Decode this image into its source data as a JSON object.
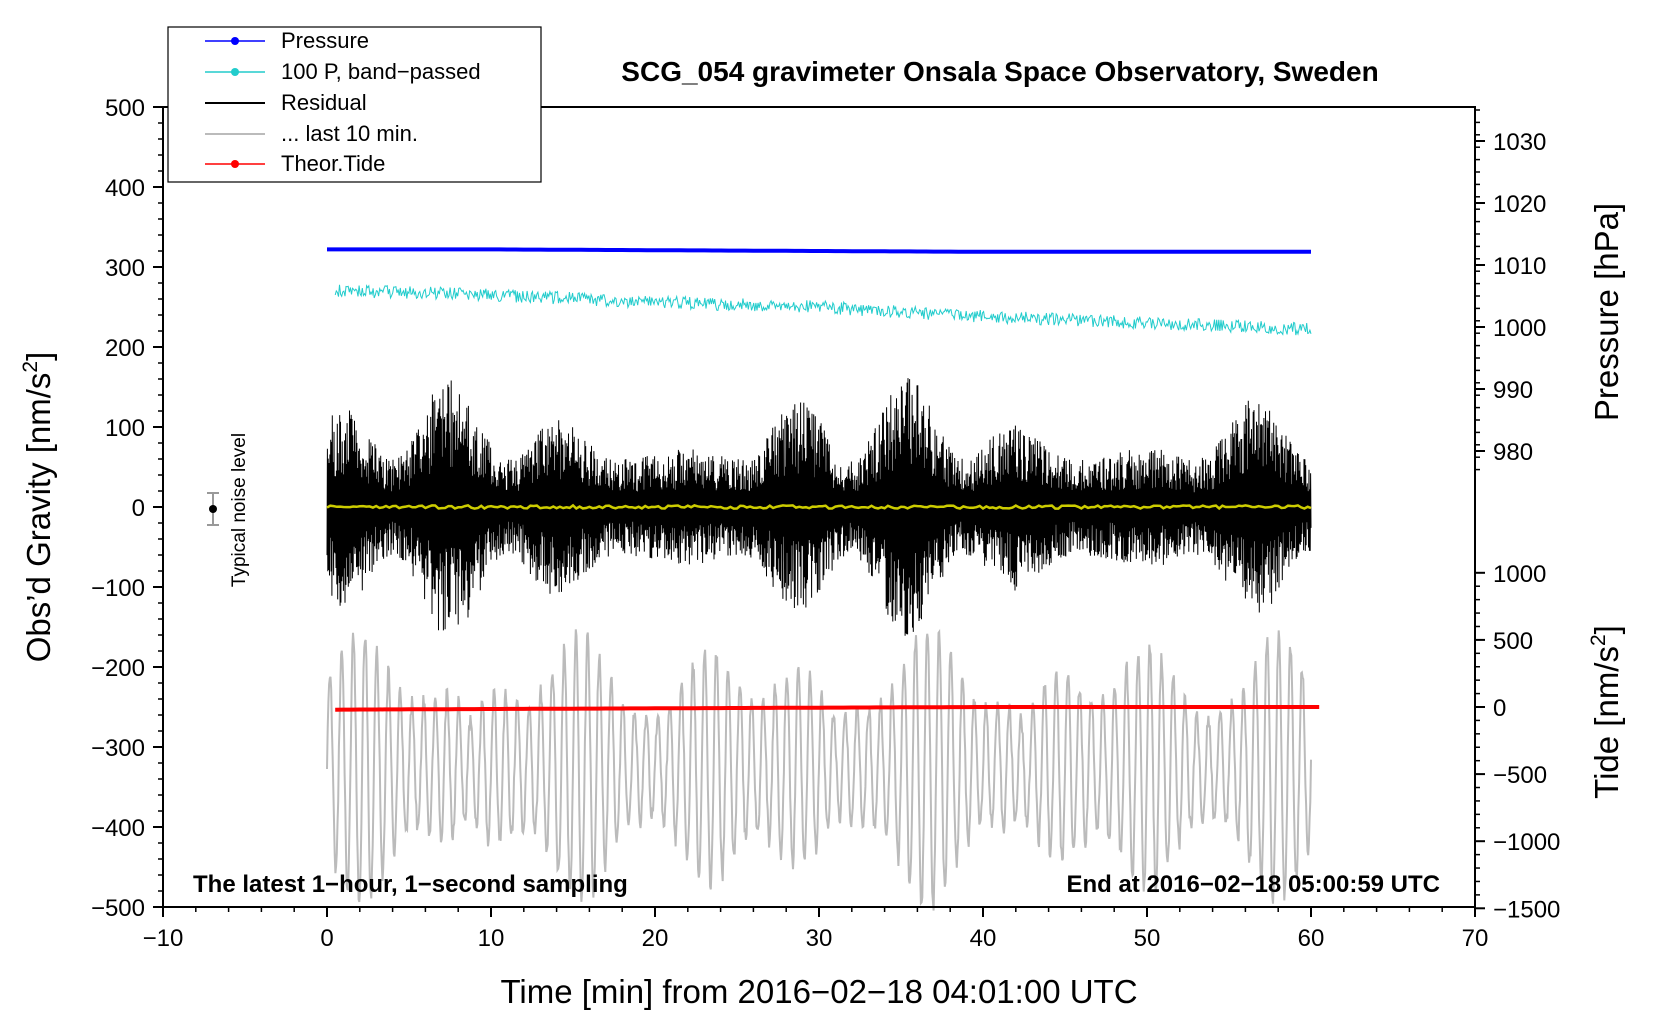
{
  "chart_data": {
    "type": "line",
    "title": "SCG_054 gravimeter Onsala Space Observatory, Sweden",
    "xlabel": "Time [min] from 2016−02−18 04:01:00 UTC",
    "ylabel_left": "Obs’d Gravity [nm/s",
    "ylabel_left_sup": "2",
    "ylabel_left_close": "]",
    "ylabel_right_pressure": "Pressure [hPa]",
    "ylabel_right_tide": "Tide [nm/s",
    "ylabel_right_tide_sup": "2",
    "ylabel_right_tide_close": "]",
    "xlim": [
      -10,
      70
    ],
    "ylim_left": [
      -500,
      500
    ],
    "pressure_range": [
      980,
      1030
    ],
    "tide_range": [
      -1500,
      1000
    ],
    "x_ticks": [
      "−10",
      "0",
      "10",
      "20",
      "30",
      "40",
      "50",
      "60",
      "70"
    ],
    "x_tick_values": [
      -10,
      0,
      10,
      20,
      30,
      40,
      50,
      60,
      70
    ],
    "y_left_ticks": [
      "500",
      "400",
      "300",
      "200",
      "100",
      "0",
      "−100",
      "−200",
      "−300",
      "−400",
      "−500"
    ],
    "y_left_tick_values": [
      500,
      400,
      300,
      200,
      100,
      0,
      -100,
      -200,
      -300,
      -400,
      -500
    ],
    "pressure_ticks": [
      "1030",
      "1020",
      "1010",
      "1000",
      "990",
      "980"
    ],
    "pressure_tick_values": [
      1030,
      1020,
      1010,
      1000,
      990,
      980
    ],
    "tide_ticks": [
      "1000",
      "500",
      "0",
      "−500",
      "−1000",
      "−1500"
    ],
    "tide_tick_values": [
      1000,
      500,
      0,
      -500,
      -1000,
      -1500
    ],
    "legend": [
      {
        "label": "Pressure",
        "color": "#0000ff",
        "marker": true
      },
      {
        "label": "100 P, band−passed",
        "color": "#22cccc",
        "marker": true
      },
      {
        "label": "Residual",
        "color": "#000000",
        "marker": false
      },
      {
        "label": "... last 10 min.",
        "color": "#bbbbbb",
        "marker": false
      },
      {
        "label": "Theor.Tide",
        "color": "#ff0000",
        "marker": true
      }
    ],
    "series": [
      {
        "name": "Pressure",
        "color": "#0000ff",
        "axis": "left_equiv",
        "x": [
          0,
          10,
          20,
          30,
          40,
          50,
          60
        ],
        "values": [
          322,
          322,
          321,
          320,
          319,
          319,
          319
        ]
      },
      {
        "name": "100 P, band−passed",
        "color": "#22cccc",
        "axis": "left_equiv",
        "x": [
          0,
          10,
          20,
          30,
          40,
          50,
          60
        ],
        "values": [
          271,
          265,
          256,
          250,
          238,
          230,
          222
        ]
      },
      {
        "name": "Residual",
        "color": "#000000",
        "axis": "left",
        "x_range": [
          0,
          60
        ],
        "amplitude_min": 60,
        "amplitude_max": 165
      },
      {
        "name": "... last 10 min.",
        "color": "#bbbbbb",
        "axis": "left_equiv",
        "x_range": [
          0,
          60
        ],
        "baseline": -325,
        "amplitude_max": 175
      },
      {
        "name": "Theor.Tide",
        "color": "#ff0000",
        "axis": "tide",
        "x": [
          0,
          10,
          20,
          30,
          40,
          50,
          60
        ],
        "values": [
          -20,
          -15,
          -10,
          -5,
          0,
          0,
          0
        ]
      },
      {
        "name": "Smoothed residual",
        "color": "#cccc00",
        "axis": "left",
        "x": [
          0,
          30,
          60
        ],
        "values": [
          0,
          0,
          0
        ]
      }
    ],
    "noise_level": {
      "x": -7,
      "center": 0,
      "error": 20,
      "label": "Typical noise level"
    },
    "annotation_left": "The latest 1−hour, 1−second sampling",
    "annotation_right": "End at 2016−02−18 05:00:59 UTC"
  }
}
